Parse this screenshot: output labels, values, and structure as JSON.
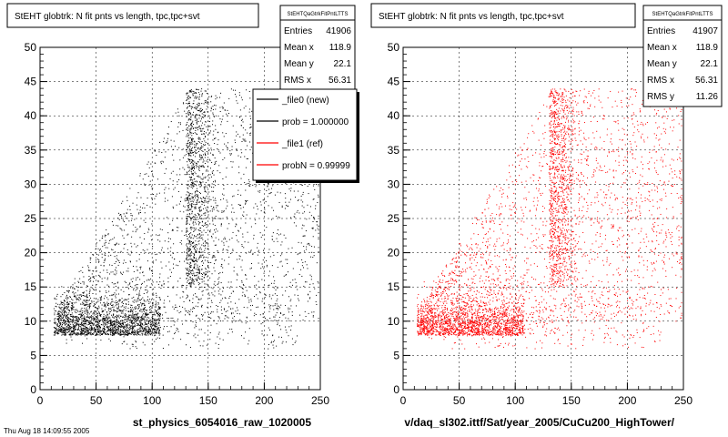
{
  "footer_fragment": "Thu Aug 18 14:09:55 2005",
  "chart_data": [
    {
      "type": "scatter",
      "title": "StEHT globtrk: N fit pnts vs length, tpc,tpc+svt",
      "stats": {
        "name": "StEHTQaGtrkFitPntLTTS",
        "rows": [
          {
            "label": "Entries",
            "value": "41906"
          },
          {
            "label": "Mean x",
            "value": "118.9"
          },
          {
            "label": "Mean y",
            "value": "22.1"
          },
          {
            "label": "RMS x",
            "value": "56.31"
          }
        ]
      },
      "legend": {
        "placement": "top-right",
        "entries": [
          {
            "label": "_file0 (new)",
            "color": "#000000"
          },
          {
            "label": "prob = 1.000000",
            "color": "#000000"
          },
          {
            "label": "_file1 (ref)",
            "color": "#ff0000"
          },
          {
            "label": "probN = 0.99999",
            "color": "#ff0000"
          }
        ]
      },
      "xlabel": "st_physics_6054016_raw_1020005",
      "xlim": [
        0,
        250
      ],
      "ylim": [
        0,
        50
      ],
      "xticks": [
        0,
        50,
        100,
        150,
        200,
        250
      ],
      "yticks": [
        0,
        5,
        10,
        15,
        20,
        25,
        30,
        35,
        40,
        45,
        50
      ],
      "grid": true,
      "color": "#000000",
      "n_points": 41906
    },
    {
      "type": "scatter",
      "title": "StEHT globtrk: N fit pnts vs length, tpc,tpc+svt",
      "stats": {
        "name": "StEHTQaGtrkFitPntLTTS",
        "rows": [
          {
            "label": "Entries",
            "value": "41907"
          },
          {
            "label": "Mean x",
            "value": "118.9"
          },
          {
            "label": "Mean y",
            "value": "22.1"
          },
          {
            "label": "RMS x",
            "value": "56.31"
          },
          {
            "label": "RMS y",
            "value": "11.26"
          }
        ]
      },
      "xlabel": "v/daq_sl302.ittf/Sat/year_2005/CuCu200_HighTower/",
      "xlim": [
        0,
        250
      ],
      "ylim": [
        0,
        50
      ],
      "xticks": [
        0,
        50,
        100,
        150,
        200,
        250
      ],
      "yticks": [
        0,
        5,
        10,
        15,
        20,
        25,
        30,
        35,
        40,
        45,
        50
      ],
      "grid": true,
      "color": "#ff0000",
      "n_points": 41907
    }
  ]
}
